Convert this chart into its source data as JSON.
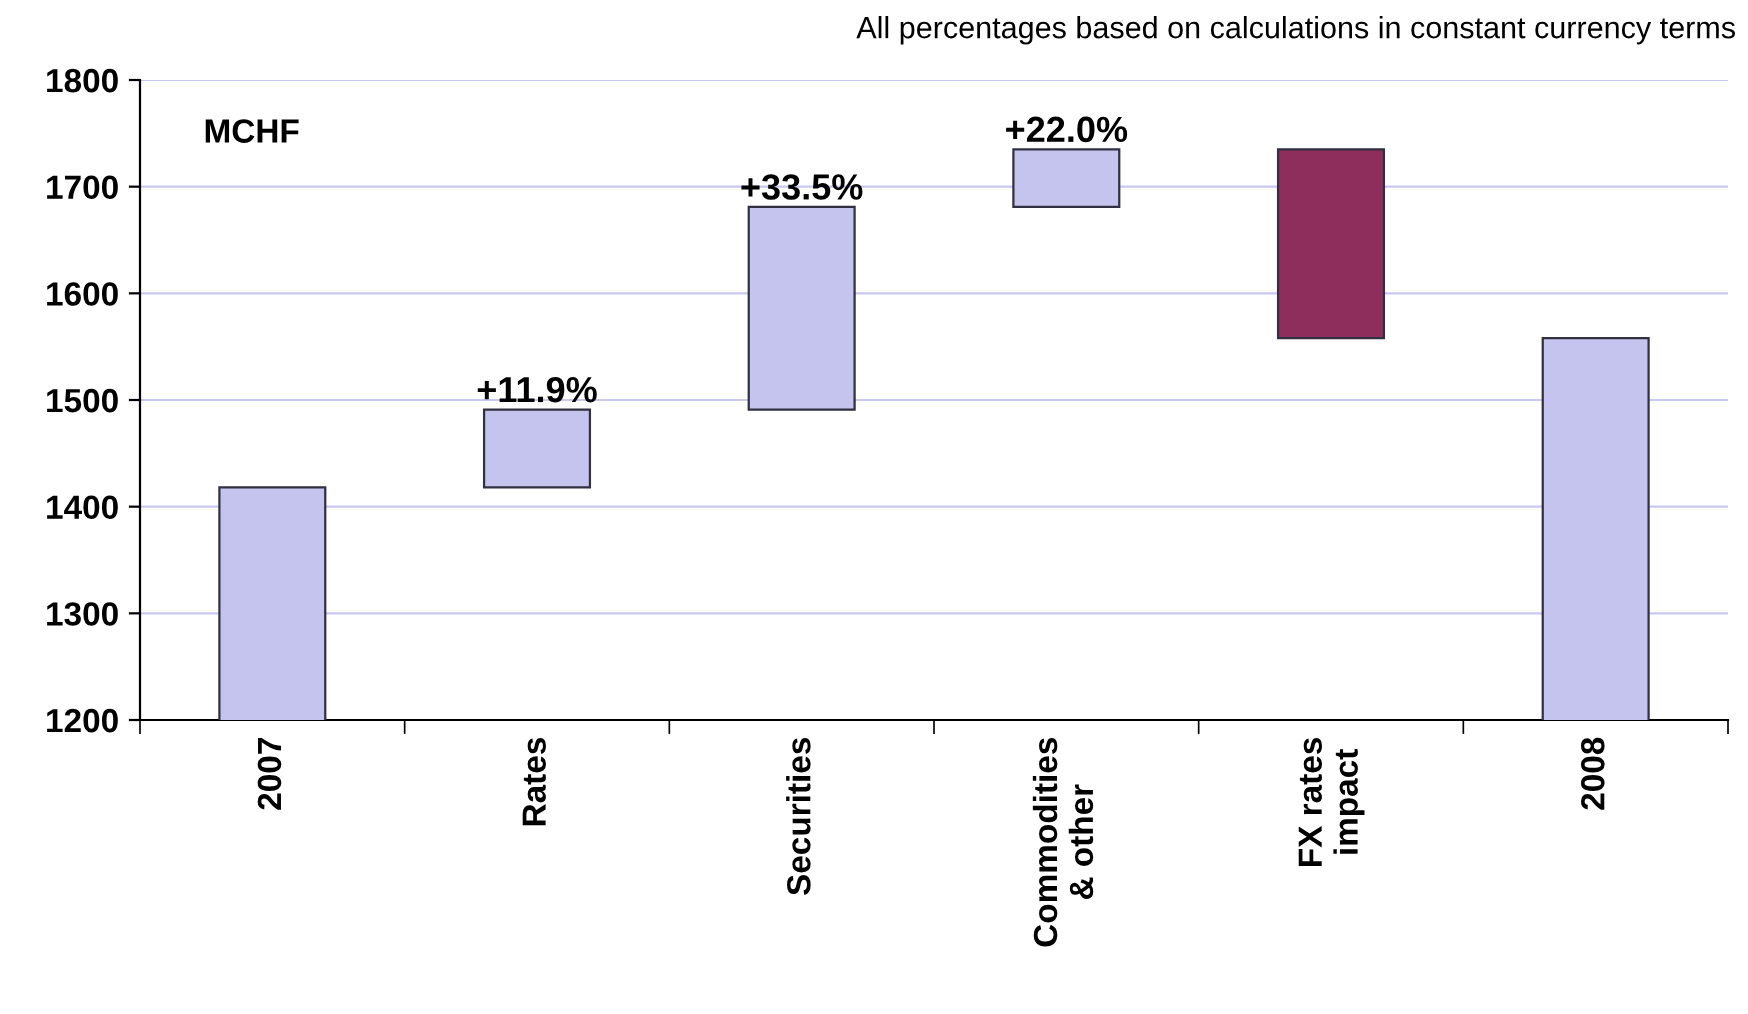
{
  "chart_data": {
    "type": "bar",
    "categories": [
      "2007",
      "Rates",
      "Securities",
      "Commodities\n& other",
      "FX rates\nimpact",
      "2008"
    ],
    "values": [
      1418,
      73,
      190,
      54,
      -177,
      1558
    ],
    "base": [
      0,
      1418,
      1491,
      1681,
      1735,
      0
    ],
    "colors": [
      "#c4c4ee",
      "#c4c4ee",
      "#c4c4ee",
      "#c4c4ee",
      "#8e2e5c",
      "#c4c4ee"
    ],
    "ylim": [
      1200,
      1800
    ],
    "yticks": [
      1200,
      1300,
      1400,
      1500,
      1600,
      1700,
      1800
    ],
    "grid": "y",
    "annotations": [
      "All percentages based on calculations in constant currency terms",
      "MCHF",
      {
        "text": "+11.9%",
        "x": "Rates",
        "y": 1491
      },
      {
        "text": "+33.5%",
        "x": "Securities",
        "y": 1681
      },
      {
        "text": "+22.0%",
        "x": "Commodities\n& other",
        "y": 1735
      }
    ]
  }
}
